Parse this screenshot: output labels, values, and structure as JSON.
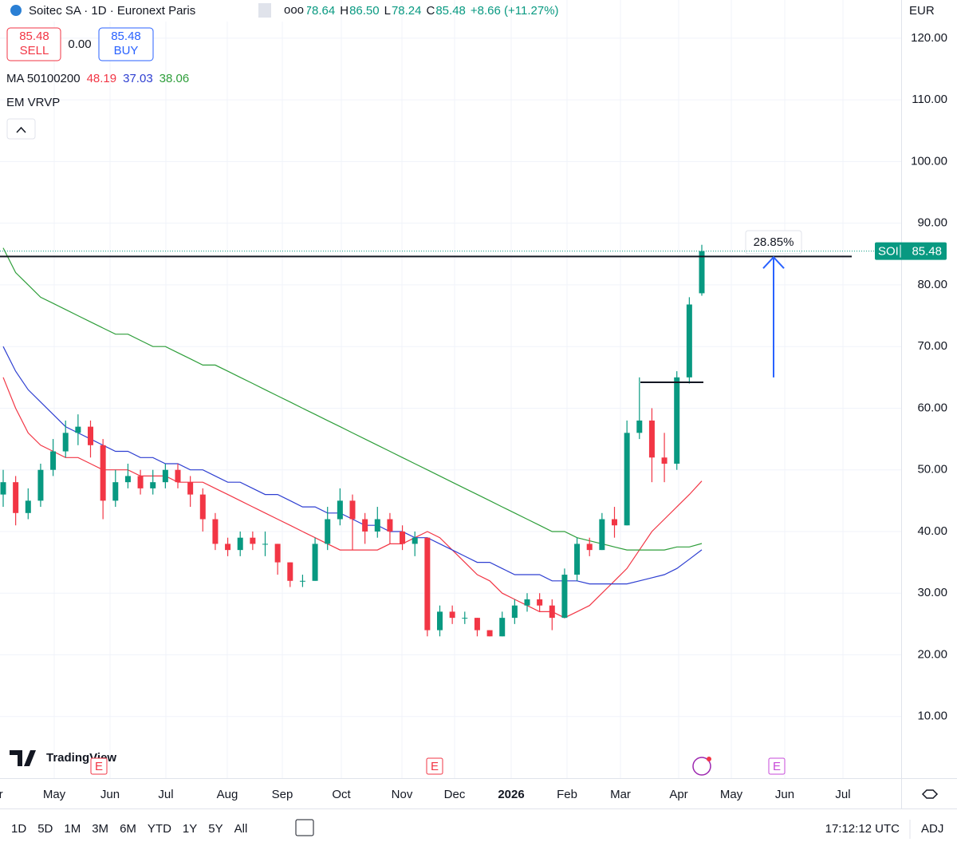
{
  "header": {
    "title": "Soitec SA · 1D · Euronext Paris",
    "ohlc": [
      {
        "label": "O",
        "value": "78.64"
      },
      {
        "label": "H",
        "value": "86.50"
      },
      {
        "label": "L",
        "value": "78.24"
      },
      {
        "label": "C",
        "value": "85.48"
      }
    ],
    "change": "+8.66 (+11.27%)",
    "currency": "EUR",
    "sell": {
      "price": "85.48",
      "label": "SELL"
    },
    "spread": "0.00",
    "buy": {
      "price": "85.48",
      "label": "BUY"
    },
    "ma_legend": {
      "name": "MA 50100200",
      "values": [
        "48.19",
        "37.03",
        "38.06"
      ]
    },
    "indicator": "EM VRVP"
  },
  "chart_data": {
    "type": "candlestick",
    "ylim": [
      0,
      126.2
    ],
    "yticks": [
      {
        "value": 10,
        "label": "10.00"
      },
      {
        "value": 20,
        "label": "20.00"
      },
      {
        "value": 30,
        "label": "30.00"
      },
      {
        "value": 40,
        "label": "40.00"
      },
      {
        "value": 50,
        "label": "50.00"
      },
      {
        "value": 60,
        "label": "60.00"
      },
      {
        "value": 70,
        "label": "70.00"
      },
      {
        "value": 80,
        "label": "80.00"
      },
      {
        "value": 90,
        "label": "90.00"
      },
      {
        "value": 100,
        "label": "100.00"
      },
      {
        "value": 110,
        "label": "110.00"
      },
      {
        "value": 120,
        "label": "120.00"
      }
    ],
    "grid": true,
    "xtick_labels": [
      "Apr",
      "May",
      "Jun",
      "Jul",
      "Aug",
      "Sep",
      "Oct",
      "Nov",
      "Dec",
      "2026",
      "Feb",
      "Mar",
      "Apr",
      "May",
      "Jun",
      "Jul"
    ],
    "up_color": "#089981",
    "down_color": "#f23645",
    "candles": {
      "open": [
        46,
        48,
        43,
        45,
        50,
        53,
        56,
        57,
        54,
        45,
        48,
        49,
        47,
        48,
        50,
        48,
        46,
        42,
        38,
        37,
        39,
        38,
        38,
        35,
        32,
        32,
        38,
        42,
        45,
        42,
        40,
        42,
        40,
        38,
        39,
        24,
        27,
        26,
        26,
        24,
        23,
        26,
        28,
        29,
        28,
        26,
        33,
        38,
        37,
        42,
        41,
        56,
        58,
        52,
        51,
        65,
        78.64
      ],
      "high": [
        50,
        49,
        47,
        51,
        55,
        58,
        59,
        58,
        55,
        50,
        51,
        50,
        50,
        51,
        51,
        49,
        47,
        43,
        39,
        40,
        40,
        40,
        38,
        35,
        33,
        39,
        44,
        47,
        46,
        43,
        44,
        43,
        41,
        40,
        39,
        28,
        28,
        27,
        26,
        24,
        27,
        29,
        30,
        30,
        29,
        34,
        39,
        39,
        43,
        44,
        58,
        65,
        60,
        56,
        66,
        78,
        86.5
      ],
      "low": [
        44,
        41,
        42,
        44,
        49,
        52,
        54,
        52,
        42,
        44,
        47,
        46,
        46,
        47,
        47,
        44,
        40,
        37,
        36,
        36,
        37,
        36,
        33,
        31,
        31,
        32,
        37,
        41,
        37,
        38,
        39,
        38,
        37,
        36,
        23,
        23,
        25,
        25,
        23,
        23,
        23,
        25,
        27,
        27,
        24,
        26,
        32,
        36,
        37,
        39,
        41,
        55,
        48,
        48,
        50,
        64,
        78.24
      ],
      "close": [
        48,
        43,
        45,
        50,
        53,
        56,
        57,
        54,
        45,
        48,
        49,
        47,
        48,
        50,
        48,
        46,
        42,
        38,
        37,
        39,
        38,
        38,
        35,
        32,
        32,
        38,
        42,
        45,
        42,
        40,
        42,
        40,
        38,
        39,
        24,
        27,
        26,
        26,
        24,
        23,
        26,
        28,
        29,
        28,
        26,
        33,
        38,
        37,
        42,
        41,
        56,
        58,
        52,
        51,
        65,
        76.82,
        85.48
      ]
    },
    "series": [
      {
        "name": "MA 50",
        "color": "#f23645",
        "values": [
          65,
          60,
          56,
          54,
          53,
          52,
          52,
          51,
          50,
          50,
          50,
          49,
          49,
          49,
          48,
          48,
          48,
          47,
          46,
          45,
          44,
          43,
          42,
          41,
          40,
          39,
          38,
          37,
          37,
          37,
          37,
          38,
          38,
          39,
          40,
          39,
          37,
          35,
          33,
          32,
          30,
          29,
          28,
          27,
          27,
          26,
          27,
          28,
          30,
          32,
          34,
          37,
          40,
          42,
          44,
          46,
          48.19
        ]
      },
      {
        "name": "MA 100",
        "color": "#2e3fd1",
        "values": [
          70,
          66,
          63,
          61,
          59,
          57,
          56,
          55,
          54,
          53,
          53,
          52,
          52,
          51,
          51,
          50,
          50,
          49,
          48,
          48,
          47,
          46,
          46,
          45,
          44,
          44,
          43,
          43,
          42,
          41,
          41,
          40,
          40,
          39,
          39,
          38,
          37,
          36,
          35,
          35,
          34,
          33,
          33,
          33,
          32,
          32,
          32,
          31.5,
          31.5,
          31.5,
          31.5,
          32,
          32.5,
          33,
          34,
          35.5,
          37.03
        ]
      },
      {
        "name": "MA 200",
        "color": "#2e9e3a",
        "values": [
          86,
          82,
          80,
          78,
          77,
          76,
          75,
          74,
          73,
          72,
          72,
          71,
          70,
          70,
          69,
          68,
          67,
          67,
          66,
          65,
          64,
          63,
          62,
          61,
          60,
          59,
          58,
          57,
          56,
          55,
          54,
          53,
          52,
          51,
          50,
          49,
          48,
          47,
          46,
          45,
          44,
          43,
          42,
          41,
          40,
          40,
          39,
          38.5,
          38,
          37.5,
          37,
          37,
          37,
          37,
          37.5,
          37.5,
          38.06
        ]
      }
    ],
    "levels": [
      84.6,
      64.2
    ],
    "arrow": {
      "from": 65,
      "to": 84.5,
      "label": "28.85%"
    },
    "price_tag": {
      "symbol": "SOI",
      "value": 85.48
    },
    "watermark": "TradingView",
    "event_marker": "E"
  },
  "toolbar": {
    "ranges": [
      "1D",
      "5D",
      "1M",
      "3M",
      "6M",
      "YTD",
      "1Y",
      "5Y",
      "All"
    ],
    "time": "17:12:12 UTC",
    "adjust": "ADJ"
  }
}
